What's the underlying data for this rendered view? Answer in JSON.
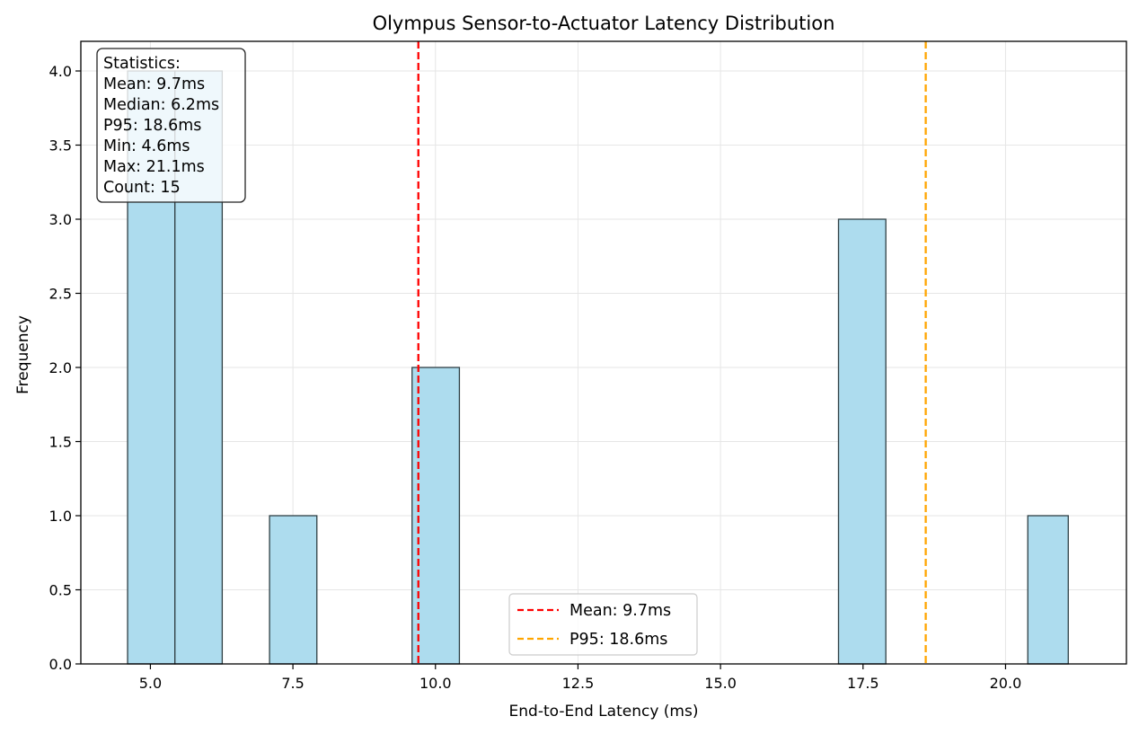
{
  "chart_data": {
    "type": "bar",
    "title": "Olympus Sensor-to-Actuator Latency Distribution",
    "xlabel": "End-to-End Latency (ms)",
    "ylabel": "Frequency",
    "xlim": [
      3.78,
      22.12
    ],
    "ylim": [
      0,
      4.2
    ],
    "x_ticks": [
      5.0,
      7.5,
      10.0,
      12.5,
      15.0,
      17.5,
      20.0
    ],
    "x_tick_labels": [
      "5.0",
      "7.5",
      "10.0",
      "12.5",
      "15.0",
      "17.5",
      "20.0"
    ],
    "y_ticks": [
      0,
      0.5,
      1.0,
      1.5,
      2.0,
      2.5,
      3.0,
      3.5,
      4.0
    ],
    "y_tick_labels": [
      "0.0",
      "0.5",
      "1.0",
      "1.5",
      "2.0",
      "2.5",
      "3.0",
      "3.5",
      "4.0"
    ],
    "grid": true,
    "bins": [
      {
        "x0": 4.6,
        "x1": 5.43,
        "count": 4
      },
      {
        "x0": 5.43,
        "x1": 6.26,
        "count": 4
      },
      {
        "x0": 7.09,
        "x1": 7.92,
        "count": 1
      },
      {
        "x0": 9.59,
        "x1": 10.42,
        "count": 2
      },
      {
        "x0": 17.07,
        "x1": 17.9,
        "count": 3
      },
      {
        "x0": 20.39,
        "x1": 21.1,
        "count": 1
      }
    ],
    "bar_color": "#ADDCEE",
    "bar_edge_color": "#2F3F44",
    "reference_lines": [
      {
        "name": "Mean: 9.7ms",
        "x": 9.7,
        "color": "#FF0000"
      },
      {
        "name": "P95: 18.6ms",
        "x": 18.6,
        "color": "#FFA500"
      }
    ],
    "legend_position": "bottom-center",
    "stats_box": {
      "lines": [
        "Statistics:",
        "Mean: 9.7ms",
        "Median: 6.2ms",
        "P95: 18.6ms",
        "Min: 4.6ms",
        "Max: 21.1ms",
        "Count: 15"
      ],
      "position": "top-left"
    }
  }
}
